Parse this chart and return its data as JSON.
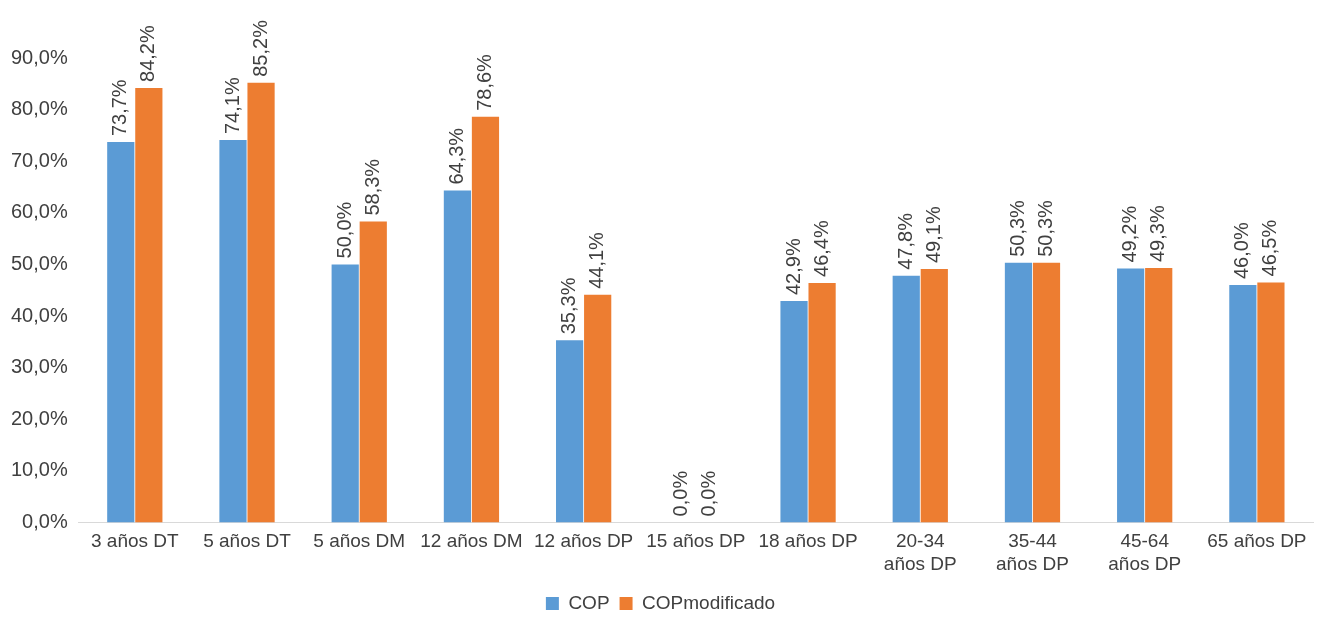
{
  "chart_data": {
    "type": "bar",
    "categories": [
      "3 años DT",
      "5 años DT",
      "5 años DM",
      "12 años DM",
      "12 años DP",
      "15 años DP",
      "18 años DP",
      "20-34 años DP",
      "35-44 años DP",
      "45-64 años DP",
      "65 años DP"
    ],
    "series": [
      {
        "name": "COP",
        "color": "#5b9bd5",
        "values": [
          73.7,
          74.1,
          50.0,
          64.3,
          35.3,
          0.0,
          42.9,
          47.8,
          50.3,
          49.2,
          46.0
        ],
        "value_labels": [
          "73,7%",
          "74,1%",
          "50,0%",
          "64,3%",
          "35,3%",
          "0,0%",
          "42,9%",
          "47,8%",
          "50,3%",
          "49,2%",
          "46,0%"
        ]
      },
      {
        "name": "COPmodificado",
        "color": "#ed7d31",
        "values": [
          84.2,
          85.2,
          58.3,
          78.6,
          44.1,
          0.0,
          46.4,
          49.1,
          50.3,
          49.3,
          46.5
        ],
        "value_labels": [
          "84,2%",
          "85,2%",
          "58,3%",
          "78,6%",
          "44,1%",
          "0,0%",
          "46,4%",
          "49,1%",
          "50,3%",
          "49,3%",
          "46,5%"
        ]
      }
    ],
    "ylim": [
      0,
      90
    ],
    "yticks": [
      {
        "value": 0,
        "label": "0,0%"
      },
      {
        "value": 10,
        "label": "10,0%"
      },
      {
        "value": 20,
        "label": "20,0%"
      },
      {
        "value": 30,
        "label": "30,0%"
      },
      {
        "value": 40,
        "label": "40,0%"
      },
      {
        "value": 50,
        "label": "50,0%"
      },
      {
        "value": 60,
        "label": "60,0%"
      },
      {
        "value": 70,
        "label": "70,0%"
      },
      {
        "value": 80,
        "label": "80,0%"
      },
      {
        "value": 90,
        "label": "90,0%"
      }
    ],
    "grid": false,
    "legend": "bottom"
  }
}
